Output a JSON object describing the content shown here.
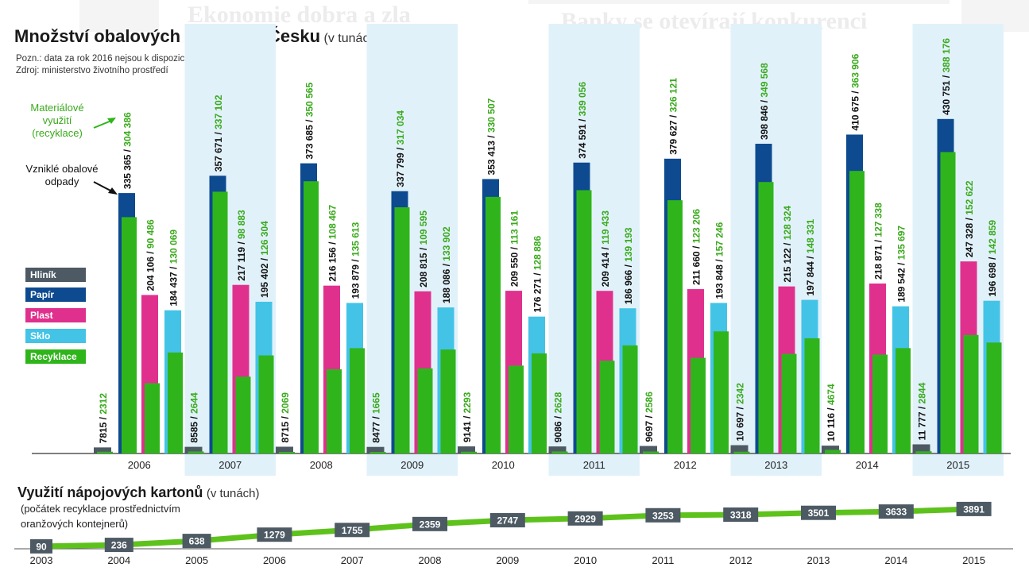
{
  "background_text": {
    "left_headline": "Ekonomie dobra a zla",
    "right_headline": "Banky se otevírají konkurenci"
  },
  "title": "Množství obalových odpadů v Česku",
  "title_unit": "(v tunách)",
  "note": "Pozn.: data za rok 2016 nejsou k dispozici",
  "source": "Zdroj: ministerstvo životního prostředí",
  "annotations": {
    "recycling": "Materiálové využití (recyklace)",
    "origin": "Vzniklé obalové odpady"
  },
  "legend": [
    {
      "label": "Hliník",
      "color": "#4d5a64"
    },
    {
      "label": "Papír",
      "color": "#0d4a8f"
    },
    {
      "label": "Plast",
      "color": "#e0308e"
    },
    {
      "label": "Sklo",
      "color": "#43c3e6"
    },
    {
      "label": "Recyklace",
      "color": "#2fb51b"
    }
  ],
  "colors": {
    "recycling": "#2fb51b",
    "recycling_text": "#3aaa1c",
    "band": "#e1f1fa",
    "axis": "#555555"
  },
  "chart_data": [
    {
      "type": "bar",
      "title": "Množství obalových odpadů v Česku",
      "subtitle": "(v tunách)",
      "categories": [
        "2006",
        "2007",
        "2008",
        "2009",
        "2010",
        "2011",
        "2012",
        "2013",
        "2014",
        "2015"
      ],
      "series": [
        {
          "name": "Hliník",
          "values": [
            7815,
            8585,
            8715,
            8477,
            9141,
            9086,
            9697,
            10697,
            10116,
            11777
          ],
          "recycled": [
            2312,
            2644,
            2069,
            1665,
            2293,
            2628,
            2586,
            2342,
            4674,
            2844
          ],
          "labels": [
            "7815",
            "8585",
            "8715",
            "8477",
            "9141",
            "9086",
            "9697",
            "10 697",
            "10 116",
            "11 777"
          ],
          "recycled_labels": [
            "2312",
            "2644",
            "2069",
            "1665",
            "2293",
            "2628",
            "2586",
            "2342",
            "4674",
            "2844"
          ]
        },
        {
          "name": "Papír",
          "values": [
            335365,
            357671,
            373685,
            337799,
            353413,
            374591,
            379627,
            398846,
            410675,
            430751
          ],
          "recycled": [
            304386,
            337102,
            350565,
            317034,
            330507,
            339056,
            326121,
            349568,
            363906,
            388176
          ],
          "labels": [
            "335 365",
            "357 671",
            "373 685",
            "337 799",
            "353 413",
            "374 591",
            "379 627",
            "398 846",
            "410 675",
            "430 751"
          ],
          "recycled_labels": [
            "304 386",
            "337 102",
            "350 565",
            "317 034",
            "330 507",
            "339 056",
            "326 121",
            "349 568",
            "363 906",
            "388 176"
          ]
        },
        {
          "name": "Plast",
          "values": [
            204106,
            217119,
            216156,
            208815,
            209550,
            209414,
            211660,
            215122,
            218871,
            247328
          ],
          "recycled": [
            90486,
            98883,
            108467,
            109595,
            113161,
            119433,
            123206,
            128324,
            127338,
            152622
          ],
          "labels": [
            "204 106",
            "217 119",
            "216 156",
            "208 815",
            "209 550",
            "209 414",
            "211 660",
            "215 122",
            "218 871",
            "247 328"
          ],
          "recycled_labels": [
            "90 486",
            "98 883",
            "108 467",
            "109 595",
            "113 161",
            "119 433",
            "123 206",
            "128 324",
            "127 338",
            "152 622"
          ]
        },
        {
          "name": "Sklo",
          "values": [
            184437,
            195402,
            193879,
            188086,
            176271,
            186966,
            193848,
            197844,
            189542,
            196698
          ],
          "recycled": [
            130069,
            126304,
            135613,
            133902,
            128886,
            139193,
            157246,
            148331,
            135697,
            142859
          ],
          "labels": [
            "184 437",
            "195 402",
            "193 879",
            "188 086",
            "176 271",
            "186 966",
            "193 848",
            "197 844",
            "189 542",
            "196 698"
          ],
          "recycled_labels": [
            "130 069",
            "126 304",
            "135 613",
            "133 902",
            "128 886",
            "139 193",
            "157 246",
            "148 331",
            "135 697",
            "142 859"
          ]
        }
      ]
    },
    {
      "type": "line",
      "title": "Využití nápojových kartonů",
      "subtitle": "(v tunách)",
      "note": "(počátek recyklace prostřednictvím oranžových kontejnerů)",
      "x": [
        "2003",
        "2004",
        "2005",
        "2006",
        "2007",
        "2008",
        "2009",
        "2010",
        "2011",
        "2012",
        "2013",
        "2014",
        "2015"
      ],
      "values": [
        90,
        236,
        638,
        1279,
        1755,
        2359,
        2747,
        2929,
        3253,
        3318,
        3501,
        3633,
        3891
      ],
      "labels": [
        "90",
        "236",
        "638",
        "1279",
        "1755",
        "2359",
        "2747",
        "2929",
        "3253",
        "3318",
        "3501",
        "3633",
        "3891"
      ]
    }
  ],
  "kartony": {
    "title": "Využití nápojových kartonů",
    "unit": "(v tunách)",
    "note_line1": "(počátek recyklace prostřednictvím",
    "note_line2": "oranžových kontejnerů)"
  }
}
